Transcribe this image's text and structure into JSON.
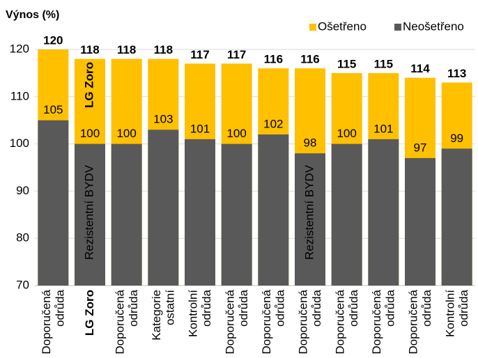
{
  "chart_data": {
    "type": "overlapping-bar",
    "y_axis_title": "Výnos (%)",
    "categories": [
      [
        "Doporučená",
        "odrůda"
      ],
      [
        "LG Zoro"
      ],
      [
        "Doporučená",
        "odrůda"
      ],
      [
        "Kategorie",
        "ostatní"
      ],
      [
        "Kontrolní",
        "odrůda"
      ],
      [
        "Doporučená",
        "odrůda"
      ],
      [
        "Doporučená",
        "odrůda"
      ],
      [
        "Doporučená",
        "odrůda"
      ],
      [
        "Doporučená",
        "odrůda"
      ],
      [
        "Doporučená",
        "odrůda"
      ],
      [
        "Doporučená",
        "odrůda"
      ],
      [
        "Kontrolní",
        "odrůda"
      ]
    ],
    "category_label_colors": [
      "#000000",
      "#e3001b",
      "#000000",
      "#000000",
      "#000000",
      "#000000",
      "#000000",
      "#000000",
      "#000000",
      "#000000",
      "#000000",
      "#000000"
    ],
    "series": [
      {
        "name": "Ošetřeno",
        "color": "#ffc000",
        "values": [
          120,
          118,
          118,
          118,
          117,
          117,
          116,
          116,
          115,
          115,
          114,
          113
        ]
      },
      {
        "name": "Neošetřeno",
        "color": "#595959",
        "values": [
          105,
          100,
          100,
          103,
          101,
          100,
          102,
          98,
          100,
          101,
          97,
          99
        ]
      }
    ],
    "annotations": [
      {
        "text": "LG Zoro",
        "color": "#e3001b"
      },
      {
        "text": "Rezistentní BYDV",
        "color": "#ffffff"
      },
      {
        "text": "Rezistentní BYDV",
        "color": "#ffffff"
      }
    ],
    "ylim": [
      70,
      120
    ],
    "yticks": [
      70,
      80,
      90,
      100,
      110,
      120
    ],
    "grid": true,
    "legend": "top-right"
  }
}
